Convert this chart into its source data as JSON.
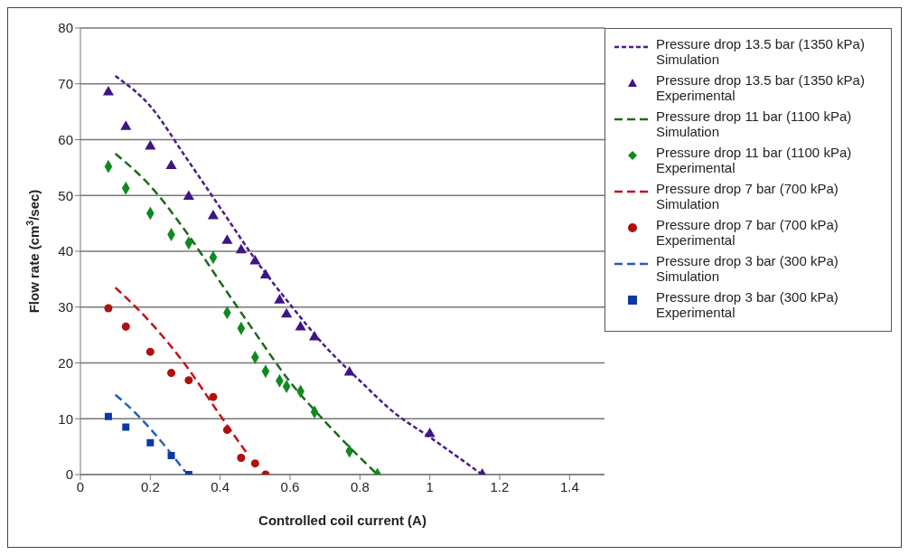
{
  "chart_data": {
    "type": "scatter",
    "xlabel": "Controlled coil current (A)",
    "ylabel": "Flow rate (cm$^{3}$/sec)",
    "xlim": [
      0,
      1.5
    ],
    "xticks": [
      0,
      0.2,
      0.4,
      0.6,
      0.8,
      1,
      1.2,
      1.4
    ],
    "ylim": [
      0,
      80
    ],
    "yticks": [
      0,
      10,
      20,
      30,
      40,
      50,
      60,
      70,
      80
    ],
    "grid": "y",
    "legend": "top right",
    "series": [
      {
        "name": "Pressure drop 13.5 bar (1350 kPa) Simulation",
        "type": "line",
        "line_style": "dotted",
        "color": "#4b1a8c",
        "x": [
          0.1,
          0.2,
          0.3,
          0.4,
          0.5,
          0.6,
          0.7,
          0.8,
          0.9,
          1.0,
          1.15
        ],
        "values": [
          71.4,
          66,
          57,
          47.8,
          38.6,
          30.5,
          23,
          16.8,
          11,
          6.7,
          0
        ]
      },
      {
        "name": "Pressure drop 13.5 bar (1350 kPa) Experimental",
        "marker": "triangle",
        "color": "#3d1585",
        "x": [
          0.08,
          0.13,
          0.2,
          0.26,
          0.31,
          0.38,
          0.42,
          0.46,
          0.5,
          0.53,
          0.57,
          0.59,
          0.63,
          0.67,
          0.77,
          1.0,
          1.15
        ],
        "values": [
          68.5,
          62.3,
          58.8,
          55.3,
          49.8,
          46.3,
          41.9,
          40.2,
          38.2,
          35.7,
          31.2,
          28.7,
          26.4,
          24.6,
          18.3,
          7.3,
          0
        ]
      },
      {
        "name": "Pressure drop 11 bar (1100 kPa) Simulation",
        "type": "line",
        "line_style": "dashed",
        "color": "#1a6b1a",
        "x": [
          0.1,
          0.2,
          0.3,
          0.4,
          0.5,
          0.6,
          0.7,
          0.85
        ],
        "values": [
          57.5,
          51.7,
          43.7,
          34.5,
          25.4,
          16.6,
          9.5,
          0
        ]
      },
      {
        "name": "Pressure drop 11 bar (1100 kPa) Experimental",
        "marker": "diamond",
        "color": "#0f8a1e",
        "x": [
          0.08,
          0.13,
          0.2,
          0.26,
          0.31,
          0.38,
          0.42,
          0.46,
          0.5,
          0.53,
          0.57,
          0.59,
          0.63,
          0.67,
          0.77,
          0.85
        ],
        "values": [
          55.2,
          51.3,
          46.8,
          43,
          41.5,
          38.9,
          29,
          26.2,
          21,
          18.5,
          16.8,
          15.8,
          14.9,
          11.2,
          4.2,
          0
        ]
      },
      {
        "name": "Pressure drop 7 bar (700 kPa) Simulation",
        "type": "line",
        "line_style": "dashed",
        "color": "#c0141c",
        "x": [
          0.1,
          0.2,
          0.3,
          0.4,
          0.48
        ],
        "values": [
          33.5,
          27.3,
          19.7,
          10.6,
          3.5
        ]
      },
      {
        "name": "Pressure drop 7 bar (700 kPa) Experimental",
        "marker": "circle",
        "color": "#b01010",
        "x": [
          0.08,
          0.13,
          0.2,
          0.26,
          0.31,
          0.38,
          0.42,
          0.46,
          0.5,
          0.53
        ],
        "values": [
          29.8,
          26.5,
          22,
          18.2,
          16.9,
          13.9,
          8,
          3,
          2,
          0
        ]
      },
      {
        "name": "Pressure drop 3 bar (300 kPa) Simulation",
        "type": "line",
        "line_style": "dashed",
        "color": "#1f5fc4",
        "x": [
          0.1,
          0.15,
          0.2,
          0.25,
          0.3
        ],
        "values": [
          14.3,
          11.5,
          8.2,
          4.5,
          0.5
        ]
      },
      {
        "name": "Pressure drop 3 bar (300 kPa) Experimental",
        "marker": "square",
        "color": "#0a3aa8",
        "x": [
          0.08,
          0.13,
          0.2,
          0.26,
          0.31
        ],
        "values": [
          10.4,
          8.5,
          5.7,
          3.4,
          0
        ]
      }
    ]
  }
}
